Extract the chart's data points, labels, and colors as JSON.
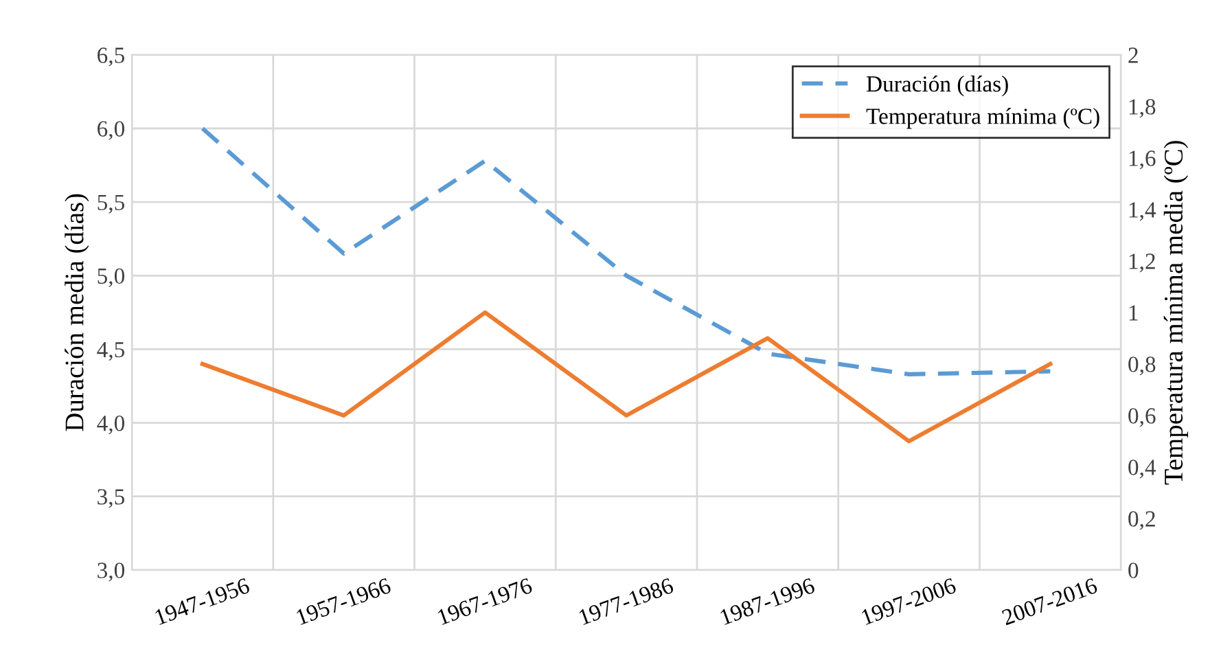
{
  "chart_data": {
    "type": "line",
    "categories": [
      "1947-1956",
      "1957-1966",
      "1967-1976",
      "1977-1986",
      "1987-1996",
      "1997-2006",
      "2007-2016"
    ],
    "series": [
      {
        "name": "Duración (días)",
        "color": "#5b9bd5",
        "line_style": "dashed",
        "values": [
          6.0,
          5.15,
          5.78,
          5.0,
          4.47,
          4.33,
          4.35
        ]
      },
      {
        "name": "Temperatura mínima (ºC)",
        "color": "#ed7d31",
        "line_style": "solid",
        "axis": "y2",
        "values": [
          0.8,
          0.6,
          1.0,
          0.6,
          0.9,
          0.5,
          0.8
        ]
      }
    ],
    "ylabel": "Duración media (días)",
    "y2label": "Temperatura mínima media (ºC)",
    "ylim": [
      3.0,
      6.5
    ],
    "yticks": [
      {
        "value": 3.0,
        "label": "3,0"
      },
      {
        "value": 3.5,
        "label": "3,5"
      },
      {
        "value": 4.0,
        "label": "4,0"
      },
      {
        "value": 4.5,
        "label": "4,5"
      },
      {
        "value": 5.0,
        "label": "5,0"
      },
      {
        "value": 5.5,
        "label": "5,5"
      },
      {
        "value": 6.0,
        "label": "6,0"
      },
      {
        "value": 6.5,
        "label": "6,5"
      }
    ],
    "y2lim": [
      0,
      2
    ],
    "y2ticks": [
      0,
      {
        "value": 0.2,
        "label": "0,2"
      },
      {
        "value": 0.4,
        "label": "0,4"
      },
      {
        "value": 0.6,
        "label": "0,6"
      },
      {
        "value": 0.8,
        "label": "0,8"
      },
      1,
      {
        "value": 1.2,
        "label": "1,2"
      },
      {
        "value": 1.4,
        "label": "1,4"
      },
      {
        "value": 1.6,
        "label": "1,6"
      },
      {
        "value": 1.8,
        "label": "1,8"
      },
      2
    ],
    "grid": true,
    "legend": "top right",
    "marker": "none"
  }
}
